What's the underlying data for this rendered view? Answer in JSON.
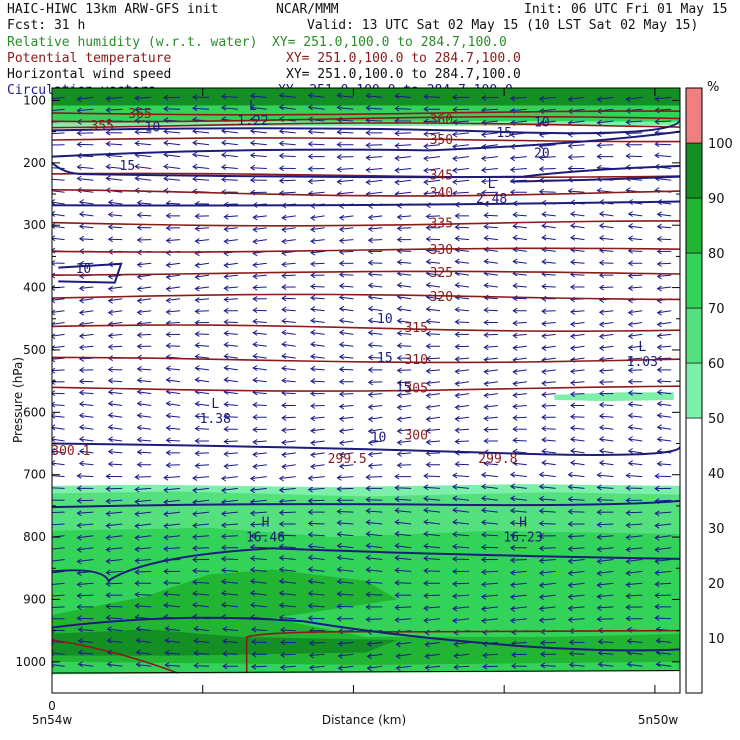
{
  "header": {
    "line1_left": "HAIC-HIWC 13km ARW-GFS init",
    "line1_mid": "NCAR/MMM",
    "line1_right": "Init: 06 UTC Fri 01 May 15",
    "line2_left": "Fcst:    31 h",
    "line2_right": "Valid: 13 UTC Sat 02 May 15 (10 LST Sat 02 May 15)",
    "fields": [
      {
        "name": "Relative humidity (w.r.t. water)",
        "xy": "XY= 251.0,100.0 to 284.7,100.0",
        "color": "#2a8c2a"
      },
      {
        "name": "Potential temperature",
        "xy": "XY= 251.0,100.0 to 284.7,100.0",
        "color": "#8b1a1a"
      },
      {
        "name": "Horizontal wind speed",
        "xy": "XY= 251.0,100.0 to 284.7,100.0",
        "color": "#111111"
      },
      {
        "name": "Circulation vectors",
        "xy": "XY= 251.0,100.0 to 284.7,100.0",
        "color": "#1a1a8c"
      }
    ]
  },
  "chart_data": {
    "type": "heatmap",
    "ylabel": "Pressure (hPa)",
    "xlabel": "Distance (km)",
    "y_ticks": [
      100,
      200,
      300,
      400,
      500,
      600,
      700,
      800,
      900,
      1000
    ],
    "ylim": [
      1050,
      80
    ],
    "x_zero_label": "0",
    "x_left_label": "5n54w",
    "x_right_label": "5n50w",
    "colorbar": {
      "unit": "%",
      "ticks": [
        10,
        20,
        30,
        40,
        50,
        60,
        70,
        80,
        90,
        100
      ],
      "levels": [
        {
          "from": 0,
          "to": 50,
          "color": "#ffffff"
        },
        {
          "from": 50,
          "to": 60,
          "color": "#7cefa9"
        },
        {
          "from": 60,
          "to": 70,
          "color": "#55e07e"
        },
        {
          "from": 70,
          "to": 80,
          "color": "#33d359"
        },
        {
          "from": 80,
          "to": 90,
          "color": "#22b533"
        },
        {
          "from": 90,
          "to": 100,
          "color": "#148f24"
        },
        {
          "from": 100,
          "to": 110,
          "color": "#f08080"
        }
      ]
    },
    "theta_contours": [
      {
        "label": "365",
        "p": 120
      },
      {
        "label": "360",
        "p": 130
      },
      {
        "label": "355",
        "p": 140
      },
      {
        "label": "350",
        "p": 163
      },
      {
        "label": "345",
        "p": 220
      },
      {
        "label": "340",
        "p": 248
      },
      {
        "label": "335",
        "p": 297
      },
      {
        "label": "330",
        "p": 340
      },
      {
        "label": "325",
        "p": 377
      },
      {
        "label": "320",
        "p": 415
      },
      {
        "label": "315",
        "p": 465
      },
      {
        "label": "310",
        "p": 516
      },
      {
        "label": "305",
        "p": 562
      },
      {
        "label": "300",
        "p": 637
      },
      {
        "label": "300.1",
        "p": 660
      },
      {
        "label": "299.5",
        "p": 672
      },
      {
        "label": "299.8",
        "p": 672
      }
    ],
    "wind_labels": [
      "10",
      "10",
      "15",
      "20",
      "15",
      "10",
      "10",
      "15",
      "15",
      "10"
    ],
    "extrema": [
      {
        "kind": "L",
        "value": "1.22"
      },
      {
        "kind": "L",
        "value": "2.48"
      },
      {
        "kind": "L",
        "value": "1.03"
      },
      {
        "kind": "L",
        "value": "1.38"
      },
      {
        "kind": "H",
        "value": "16.46"
      },
      {
        "kind": "H",
        "value": "16.23"
      }
    ],
    "grid": false
  }
}
